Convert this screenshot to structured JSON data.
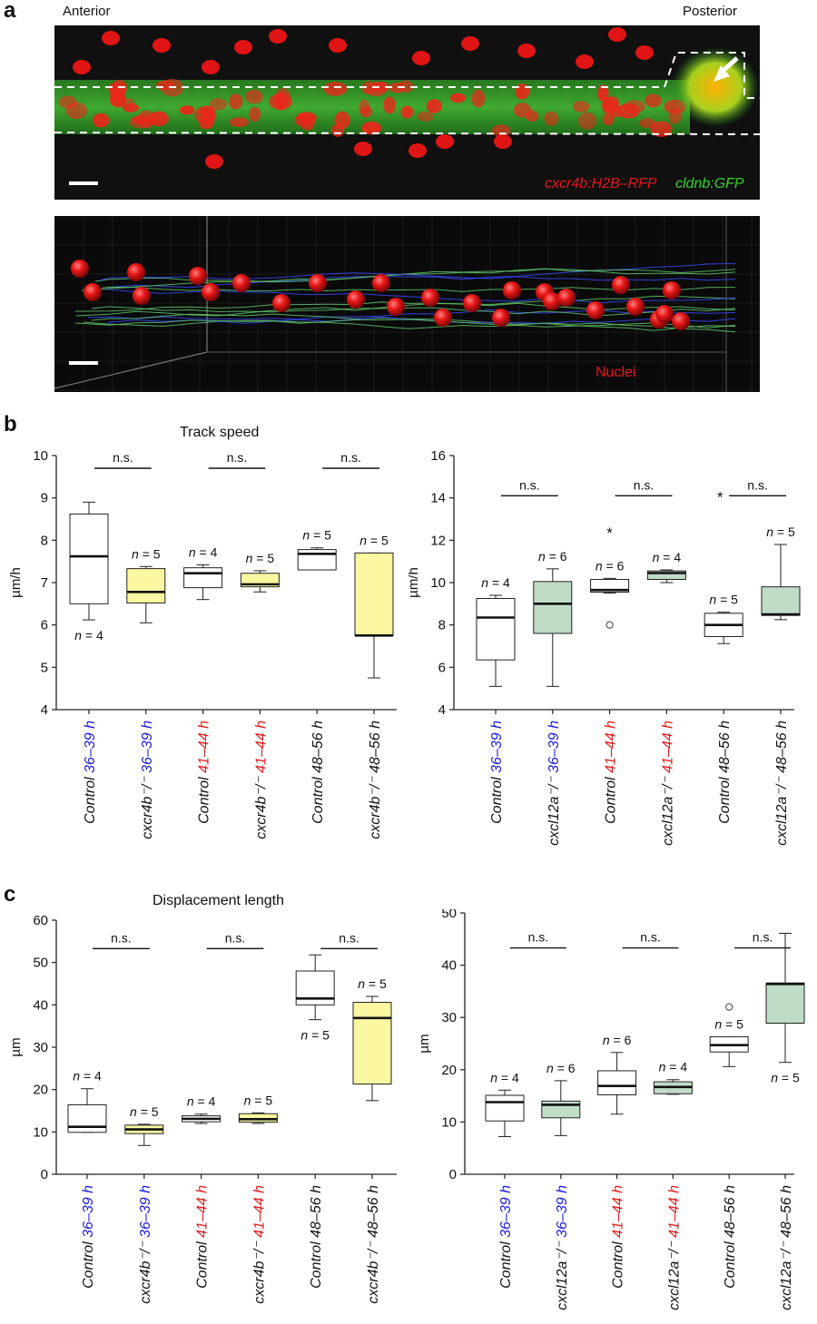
{
  "panel_a": {
    "letter": "a",
    "label_anterior": "Anterior",
    "label_posterior": "Posterior",
    "legend_red": "cxcr4b:H2B–RFP",
    "legend_green": "cldnb:GFP",
    "nuclei_label": "Nuclei",
    "colors": {
      "red": "#e8141d",
      "green": "#39d12e",
      "background": "#0c0c0c",
      "track_blue": "#3a48ff",
      "track_green": "#5ec86a"
    }
  },
  "panel_b": {
    "letter": "b",
    "title": "Track speed"
  },
  "panel_c": {
    "letter": "c",
    "title": "Displacement length"
  },
  "colors": {
    "yellow_fill": "#fbf7a1",
    "green_fill": "#bfdcc6",
    "white_fill": "#ffffff",
    "stroke": "#222222",
    "blue_label": "#1a1adf",
    "red_label": "#e31a1a"
  },
  "chart_data": [
    {
      "id": "b-left",
      "type": "box",
      "title": "Track speed",
      "ylabel": "µm/h",
      "ylim": [
        4,
        10
      ],
      "yticks": [
        4,
        5,
        6,
        7,
        8,
        9,
        10
      ],
      "categories": [
        {
          "prefix": "Control",
          "suffix": "36–39 h",
          "suffix_color": "blue"
        },
        {
          "prefix": "cxcr4b⁻/⁻",
          "suffix": "36–39 h",
          "suffix_color": "blue"
        },
        {
          "prefix": "Control",
          "suffix": "41–44 h",
          "suffix_color": "red"
        },
        {
          "prefix": "cxcr4b⁻/⁻",
          "suffix": "41–44 h",
          "suffix_color": "red"
        },
        {
          "prefix": "Control",
          "suffix": "48–56 h",
          "suffix_color": "black"
        },
        {
          "prefix": "cxcr4b⁻/⁻",
          "suffix": "48–56 h",
          "suffix_color": "black"
        }
      ],
      "boxes": [
        {
          "whisker_low": 6.12,
          "q1": 6.5,
          "median": 7.62,
          "q3": 8.62,
          "whisker_high": 8.9,
          "fill": "white",
          "n": "n = 4",
          "n_pos": "below"
        },
        {
          "whisker_low": 6.05,
          "q1": 6.52,
          "median": 6.78,
          "q3": 7.33,
          "whisker_high": 7.38,
          "fill": "yellow",
          "n": "n = 5",
          "n_pos": "above"
        },
        {
          "whisker_low": 6.6,
          "q1": 6.88,
          "median": 7.22,
          "q3": 7.35,
          "whisker_high": 7.42,
          "fill": "white",
          "n": "n = 4",
          "n_pos": "above"
        },
        {
          "whisker_low": 6.78,
          "q1": 6.9,
          "median": 6.96,
          "q3": 7.22,
          "whisker_high": 7.28,
          "fill": "yellow",
          "n": "n = 5",
          "n_pos": "above"
        },
        {
          "whisker_low": 7.3,
          "q1": 7.3,
          "median": 7.68,
          "q3": 7.78,
          "whisker_high": 7.82,
          "fill": "white",
          "n": "n = 5",
          "n_pos": "above"
        },
        {
          "whisker_low": 4.75,
          "q1": 5.75,
          "median": 5.75,
          "q3": 7.7,
          "whisker_high": 7.7,
          "fill": "yellow",
          "n": "n = 5",
          "n_pos": "above"
        }
      ],
      "comparisons": [
        {
          "from": 0,
          "to": 1,
          "y": 9.7,
          "label": "n.s."
        },
        {
          "from": 2,
          "to": 3,
          "y": 9.7,
          "label": "n.s."
        },
        {
          "from": 4,
          "to": 5,
          "y": 9.7,
          "label": "n.s."
        }
      ],
      "outliers": []
    },
    {
      "id": "b-right",
      "type": "box",
      "ylabel": "µm/h",
      "ylim": [
        4,
        16
      ],
      "yticks": [
        4,
        6,
        8,
        10,
        12,
        14,
        16
      ],
      "categories": [
        {
          "prefix": "Control",
          "suffix": "36–39 h",
          "suffix_color": "blue"
        },
        {
          "prefix": "cxcl12a⁻/⁻",
          "suffix": "36–39 h",
          "suffix_color": "blue"
        },
        {
          "prefix": "Control",
          "suffix": "41–44 h",
          "suffix_color": "red"
        },
        {
          "prefix": "cxcl12a⁻/⁻",
          "suffix": "41–44 h",
          "suffix_color": "red"
        },
        {
          "prefix": "Control",
          "suffix": "48–56 h",
          "suffix_color": "black"
        },
        {
          "prefix": "cxcl12a⁻/⁻",
          "suffix": "48–56 h",
          "suffix_color": "black"
        }
      ],
      "boxes": [
        {
          "whisker_low": 5.1,
          "q1": 6.35,
          "median": 8.35,
          "q3": 9.25,
          "whisker_high": 9.4,
          "fill": "white",
          "n": "n = 4",
          "n_pos": "above"
        },
        {
          "whisker_low": 5.1,
          "q1": 7.6,
          "median": 9.0,
          "q3": 10.05,
          "whisker_high": 10.65,
          "fill": "green",
          "n": "n = 6",
          "n_pos": "above"
        },
        {
          "whisker_low": 9.5,
          "q1": 9.55,
          "median": 9.65,
          "q3": 10.15,
          "whisker_high": 10.2,
          "fill": "white",
          "n": "n = 6",
          "n_pos": "above"
        },
        {
          "whisker_low": 10.0,
          "q1": 10.15,
          "median": 10.45,
          "q3": 10.55,
          "whisker_high": 10.6,
          "fill": "green",
          "n": "n = 4",
          "n_pos": "above"
        },
        {
          "whisker_low": 7.12,
          "q1": 7.45,
          "median": 8.0,
          "q3": 8.55,
          "whisker_high": 8.6,
          "fill": "white",
          "n": "n = 5",
          "n_pos": "above"
        },
        {
          "whisker_low": 8.25,
          "q1": 8.45,
          "median": 8.5,
          "q3": 9.8,
          "whisker_high": 11.8,
          "fill": "green",
          "n": "n = 5",
          "n_pos": "above"
        }
      ],
      "comparisons": [
        {
          "from": 0,
          "to": 1,
          "y": 14.1,
          "label": "n.s."
        },
        {
          "from": 2,
          "to": 3,
          "y": 14.1,
          "label": "n.s."
        },
        {
          "from": 4,
          "to": 5,
          "y": 14.1,
          "label": "n.s.",
          "star_left": "*"
        }
      ],
      "outliers": [
        {
          "box": 2,
          "y": 8.0
        },
        {
          "box": 2,
          "star_y": 12.4,
          "star": "*"
        }
      ]
    },
    {
      "id": "c-left",
      "type": "box",
      "title": "Displacement length",
      "ylabel": "µm",
      "ylim": [
        0,
        60
      ],
      "yticks": [
        0,
        10,
        20,
        30,
        40,
        50,
        60
      ],
      "categories": [
        {
          "prefix": "Control",
          "suffix": "36–39 h",
          "suffix_color": "blue"
        },
        {
          "prefix": "cxcr4b⁻/⁻",
          "suffix": "36–39 h",
          "suffix_color": "blue"
        },
        {
          "prefix": "Control",
          "suffix": "41–44 h",
          "suffix_color": "red"
        },
        {
          "prefix": "cxcr4b⁻/⁻",
          "suffix": "41–44 h",
          "suffix_color": "red"
        },
        {
          "prefix": "Control",
          "suffix": "48–56 h",
          "suffix_color": "black"
        },
        {
          "prefix": "cxcr4b⁻/⁻",
          "suffix": "48–56 h",
          "suffix_color": "black"
        }
      ],
      "boxes": [
        {
          "whisker_low": 9.9,
          "q1": 9.9,
          "median": 11.2,
          "q3": 16.4,
          "whisker_high": 20.2,
          "fill": "white",
          "n": "n = 4",
          "n_pos": "above"
        },
        {
          "whisker_low": 6.8,
          "q1": 9.6,
          "median": 10.6,
          "q3": 11.6,
          "whisker_high": 11.8,
          "fill": "yellow",
          "n": "n = 5",
          "n_pos": "above"
        },
        {
          "whisker_low": 12.0,
          "q1": 12.4,
          "median": 13.1,
          "q3": 13.8,
          "whisker_high": 14.2,
          "fill": "white",
          "n": "n = 4",
          "n_pos": "above"
        },
        {
          "whisker_low": 12.0,
          "q1": 12.3,
          "median": 13.0,
          "q3": 14.3,
          "whisker_high": 14.5,
          "fill": "yellow",
          "n": "n = 5",
          "n_pos": "above"
        },
        {
          "whisker_low": 36.5,
          "q1": 40.0,
          "median": 41.5,
          "q3": 48.0,
          "whisker_high": 51.8,
          "fill": "white",
          "n": "n = 5",
          "n_pos": "below"
        },
        {
          "whisker_low": 17.4,
          "q1": 21.3,
          "median": 36.9,
          "q3": 40.6,
          "whisker_high": 42.0,
          "fill": "yellow",
          "n": "n = 5",
          "n_pos": "above"
        }
      ],
      "comparisons": [
        {
          "from": 0,
          "to": 1,
          "y": 53.3,
          "label": "n.s."
        },
        {
          "from": 2,
          "to": 3,
          "y": 53.3,
          "label": "n.s."
        },
        {
          "from": 4,
          "to": 5,
          "y": 53.3,
          "label": "n.s."
        }
      ],
      "outliers": []
    },
    {
      "id": "c-right",
      "type": "box",
      "ylabel": "µm",
      "ylim": [
        0,
        50
      ],
      "yticks": [
        0,
        10,
        20,
        30,
        40,
        50
      ],
      "categories": [
        {
          "prefix": "Control",
          "suffix": "36–39 h",
          "suffix_color": "blue"
        },
        {
          "prefix": "cxcl12a⁻/⁻",
          "suffix": "36–39 h",
          "suffix_color": "blue"
        },
        {
          "prefix": "Control",
          "suffix": "41–44 h",
          "suffix_color": "red"
        },
        {
          "prefix": "cxcl12a⁻/⁻",
          "suffix": "41–44 h",
          "suffix_color": "red"
        },
        {
          "prefix": "Control",
          "suffix": "48–56 h",
          "suffix_color": "black"
        },
        {
          "prefix": "cxcl12a⁻/⁻",
          "suffix": "48–56 h",
          "suffix_color": "black"
        }
      ],
      "boxes": [
        {
          "whisker_low": 7.2,
          "q1": 10.2,
          "median": 13.8,
          "q3": 15.1,
          "whisker_high": 16.1,
          "fill": "white",
          "n": "n = 4",
          "n_pos": "above"
        },
        {
          "whisker_low": 7.4,
          "q1": 10.8,
          "median": 13.3,
          "q3": 14.0,
          "whisker_high": 17.9,
          "fill": "green",
          "n": "n = 6",
          "n_pos": "above"
        },
        {
          "whisker_low": 11.5,
          "q1": 15.2,
          "median": 16.9,
          "q3": 19.8,
          "whisker_high": 23.3,
          "fill": "white",
          "n": "n = 6",
          "n_pos": "above"
        },
        {
          "whisker_low": 15.3,
          "q1": 15.4,
          "median": 16.7,
          "q3": 17.7,
          "whisker_high": 18.1,
          "fill": "green",
          "n": "n = 4",
          "n_pos": "above"
        },
        {
          "whisker_low": 20.6,
          "q1": 23.4,
          "median": 24.7,
          "q3": 26.3,
          "whisker_high": 26.3,
          "fill": "white",
          "n": "n = 5",
          "n_pos": "above"
        },
        {
          "whisker_low": 21.4,
          "q1": 28.9,
          "median": 36.4,
          "q3": 36.6,
          "whisker_high": 46.1,
          "fill": "green",
          "n": "n = 5",
          "n_pos": "below"
        }
      ],
      "comparisons": [
        {
          "from": 0,
          "to": 1,
          "y": 43.3,
          "label": "n.s."
        },
        {
          "from": 2,
          "to": 3,
          "y": 43.3,
          "label": "n.s."
        },
        {
          "from": 4,
          "to": 5,
          "y": 43.3,
          "label": "n.s."
        }
      ],
      "outliers": [
        {
          "box": 4,
          "y": 32.0
        }
      ]
    }
  ]
}
